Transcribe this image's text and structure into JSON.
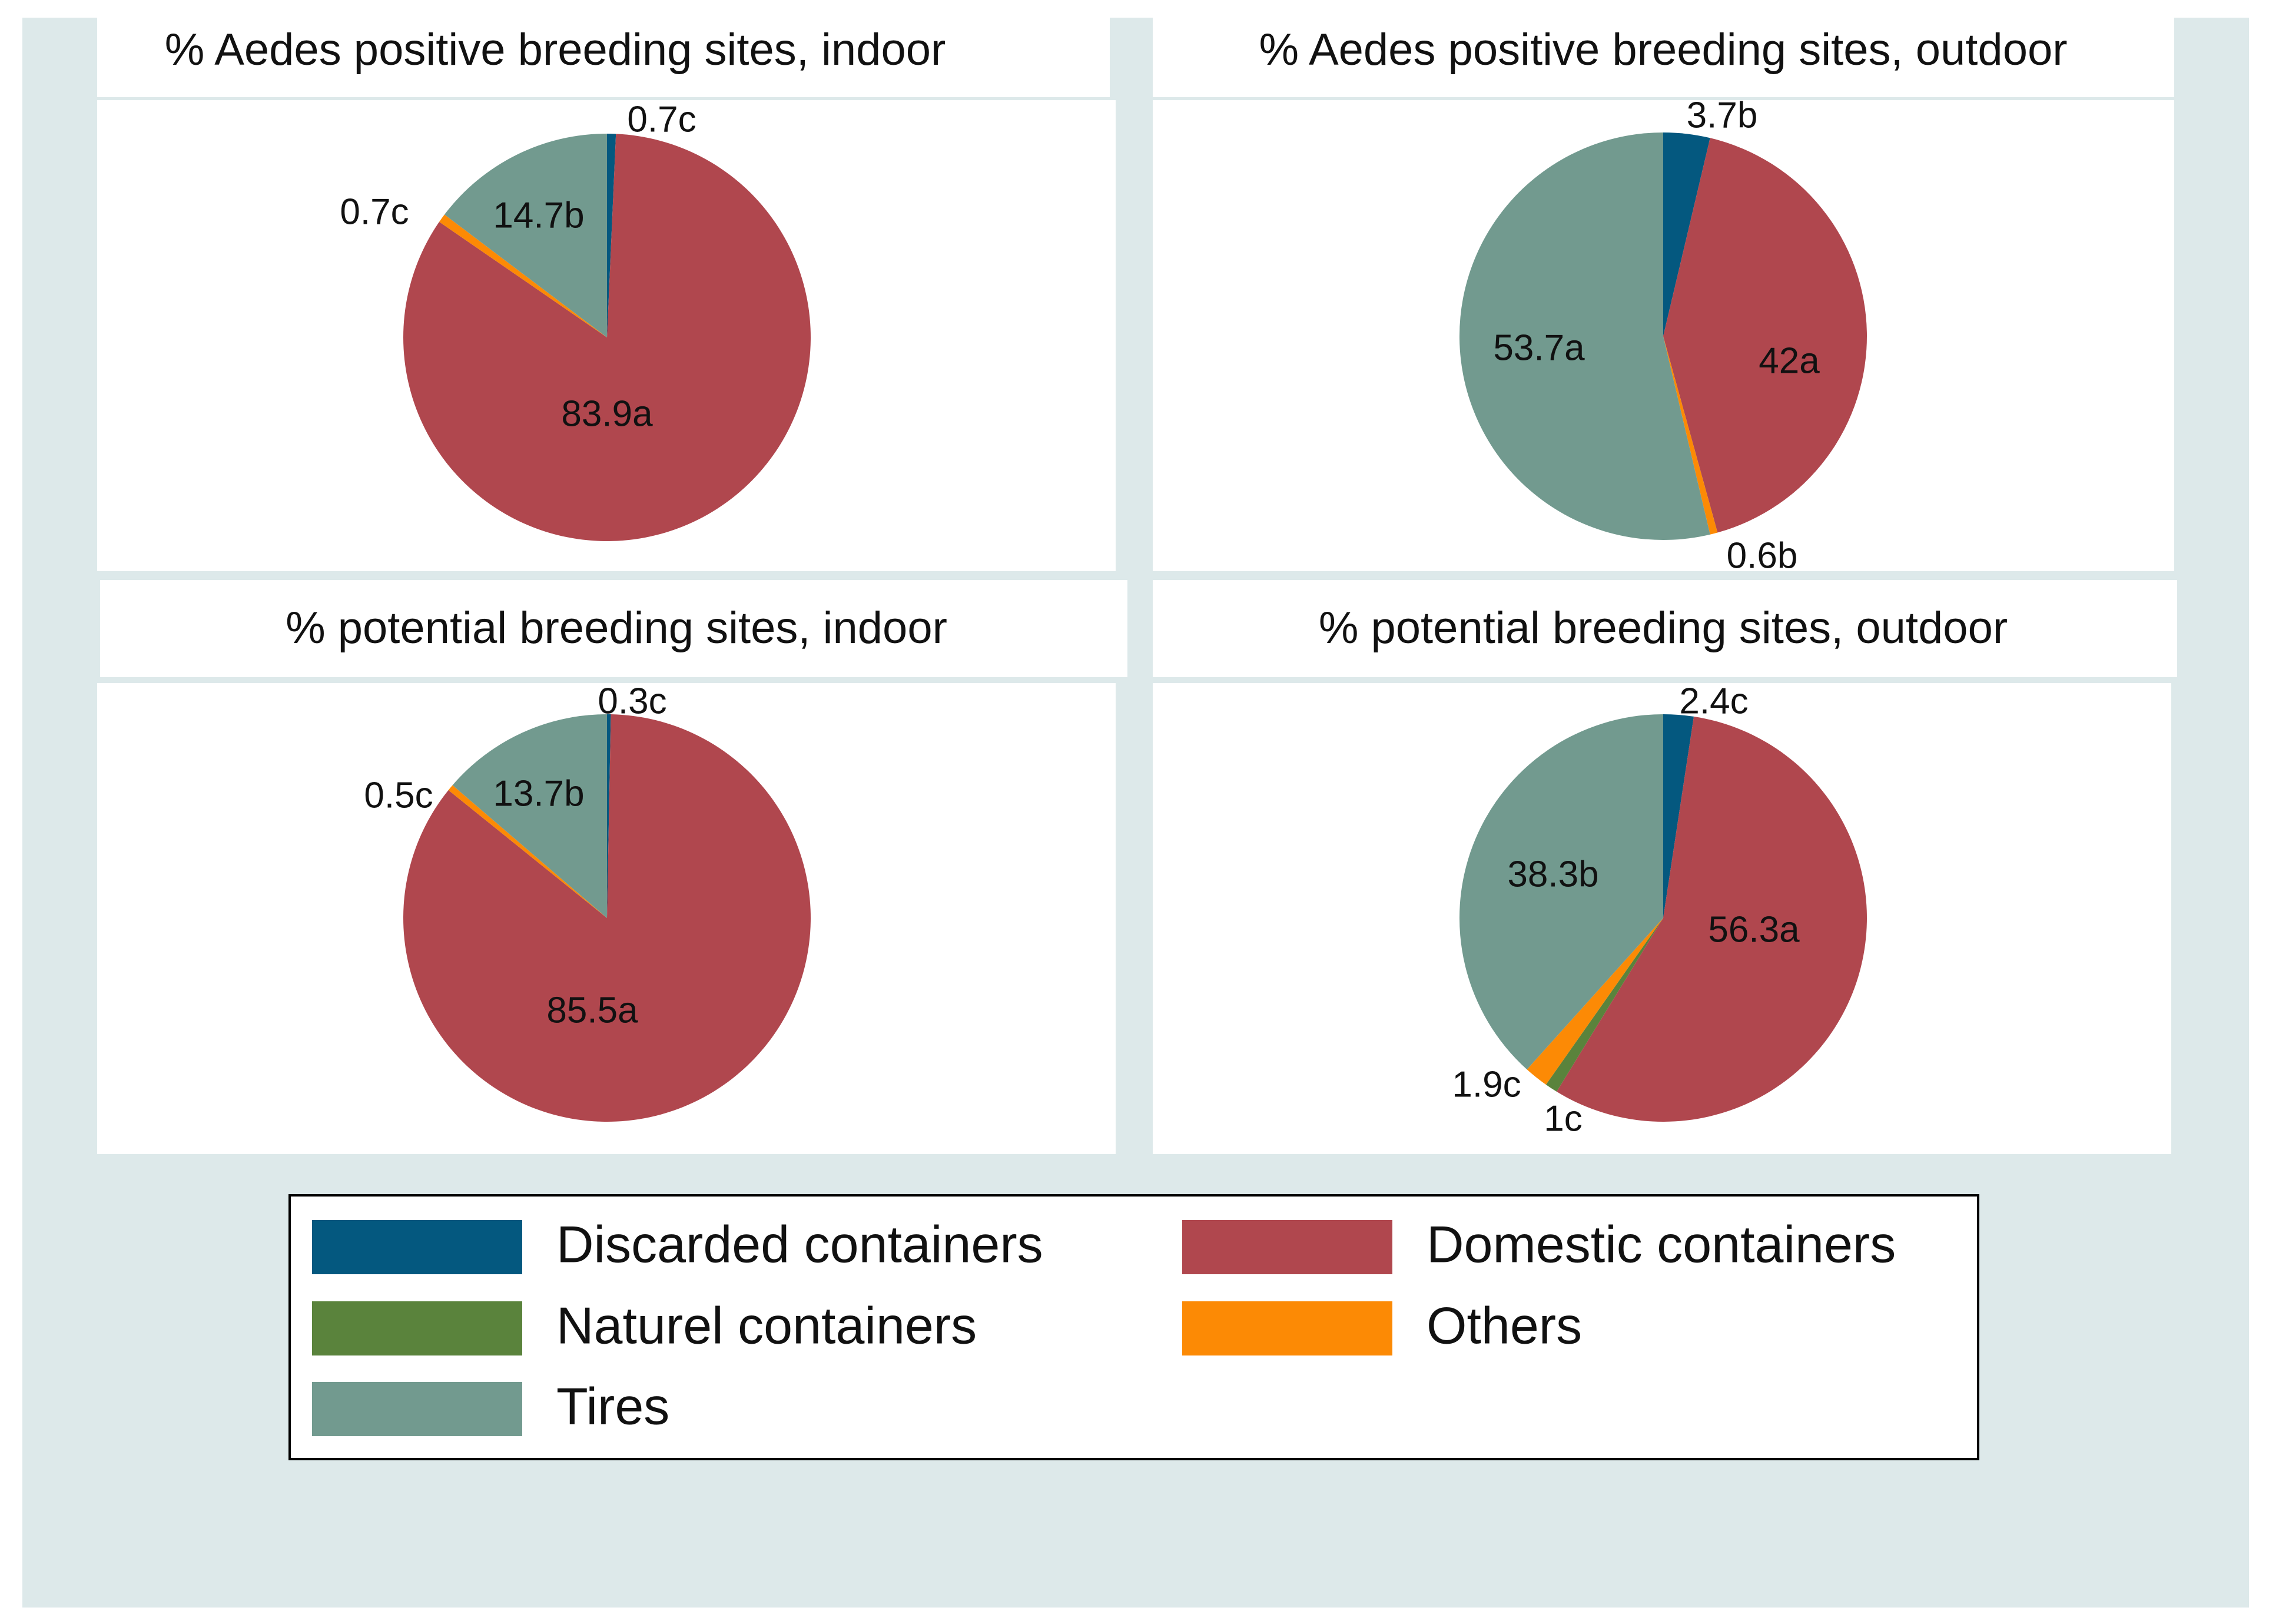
{
  "colors": {
    "background": "#dde9ea",
    "panel": "#ffffff",
    "legend_border": "#000000"
  },
  "legend": {
    "items": [
      {
        "label": "Discarded containers",
        "color": "#04587f"
      },
      {
        "label": "Domestic containers",
        "color": "#b0474e"
      },
      {
        "label": "Naturel containers",
        "color": "#5a833c"
      },
      {
        "label": "Others",
        "color": "#fc8a05"
      },
      {
        "label": "Tires",
        "color": "#729a8f"
      }
    ]
  },
  "chart_data": [
    {
      "type": "pie",
      "title": "% Aedes positive breeding sites, indoor",
      "slices": [
        {
          "category": "Discarded containers",
          "value": 0.7,
          "label": "0.7c"
        },
        {
          "category": "Domestic containers",
          "value": 83.9,
          "label": "83.9a"
        },
        {
          "category": "Naturel containers",
          "value": 0,
          "label": ""
        },
        {
          "category": "Others",
          "value": 0.7,
          "label": "0.7c"
        },
        {
          "category": "Tires",
          "value": 14.7,
          "label": "14.7b"
        }
      ]
    },
    {
      "type": "pie",
      "title": "% Aedes positive breeding sites, outdoor",
      "slices": [
        {
          "category": "Discarded containers",
          "value": 3.7,
          "label": "3.7b"
        },
        {
          "category": "Domestic containers",
          "value": 42,
          "label": "42a"
        },
        {
          "category": "Naturel containers",
          "value": 0,
          "label": ""
        },
        {
          "category": "Others",
          "value": 0.6,
          "label": "0.6b"
        },
        {
          "category": "Tires",
          "value": 53.7,
          "label": "53.7a"
        }
      ]
    },
    {
      "type": "pie",
      "title": "% potential breeding sites, indoor",
      "slices": [
        {
          "category": "Discarded containers",
          "value": 0.3,
          "label": "0.3c"
        },
        {
          "category": "Domestic containers",
          "value": 85.5,
          "label": "85.5a"
        },
        {
          "category": "Naturel containers",
          "value": 0,
          "label": ""
        },
        {
          "category": "Others",
          "value": 0.5,
          "label": "0.5c"
        },
        {
          "category": "Tires",
          "value": 13.7,
          "label": "13.7b"
        }
      ]
    },
    {
      "type": "pie",
      "title": "% potential breeding sites, outdoor",
      "slices": [
        {
          "category": "Discarded containers",
          "value": 2.4,
          "label": "2.4c"
        },
        {
          "category": "Domestic containers",
          "value": 56.3,
          "label": "56.3a"
        },
        {
          "category": "Naturel containers",
          "value": 1,
          "label": "1c"
        },
        {
          "category": "Others",
          "value": 1.9,
          "label": "1.9c"
        },
        {
          "category": "Tires",
          "value": 38.3,
          "label": "38.3b"
        }
      ]
    }
  ]
}
